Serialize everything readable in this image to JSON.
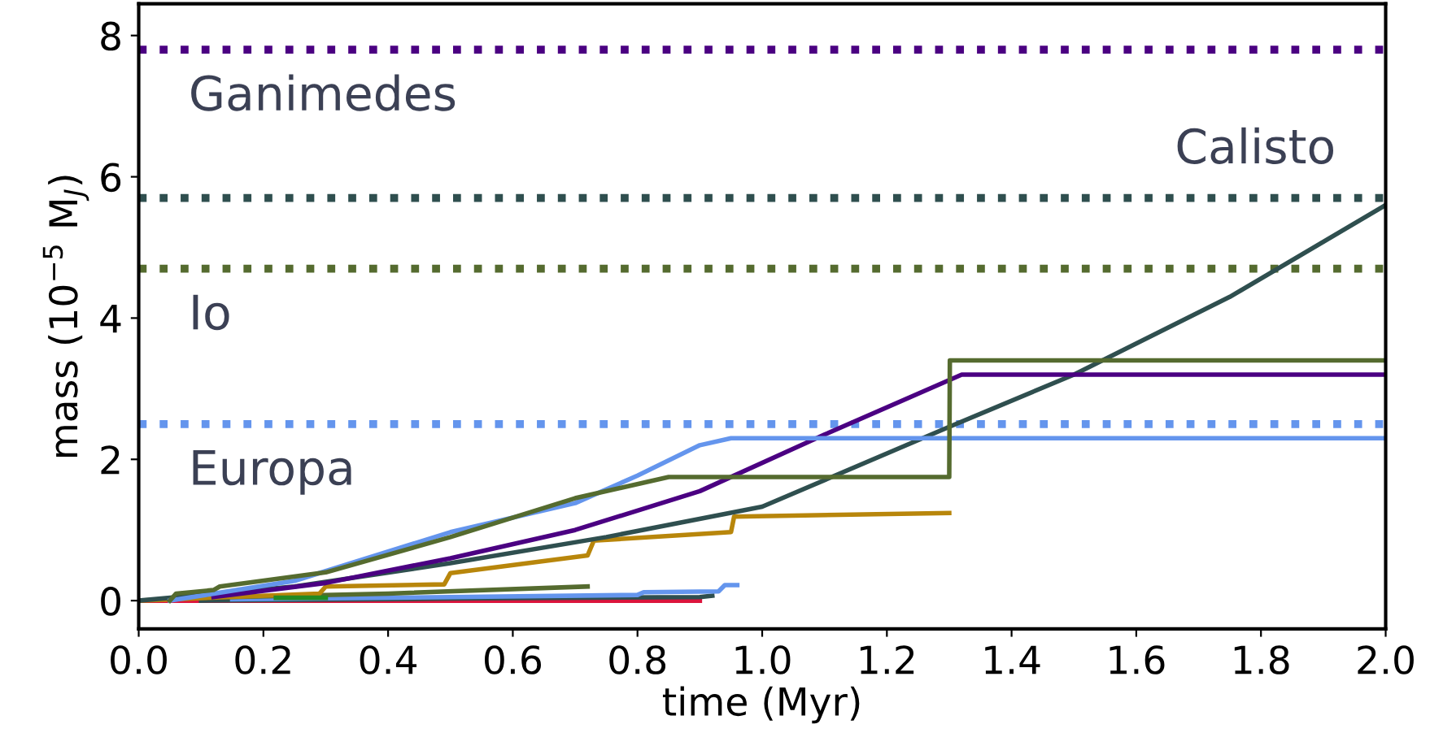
{
  "chart_data": {
    "type": "line",
    "xlabel": "time (Myr)",
    "ylabel": "mass (10$^{−5}$ M$_{J}$)",
    "xlim": [
      0.0,
      2.0
    ],
    "xticks": [
      {
        "value": 0,
        "label": "0.0"
      },
      {
        "value": 0.2,
        "label": "0.2"
      },
      {
        "value": 0.4,
        "label": "0.4"
      },
      {
        "value": 0.6,
        "label": "0.6"
      },
      {
        "value": 0.8,
        "label": "0.8"
      },
      {
        "value": 1.0,
        "label": "1.0"
      },
      {
        "value": 1.2,
        "label": "1.2"
      },
      {
        "value": 1.4,
        "label": "1.4"
      },
      {
        "value": 1.6,
        "label": "1.6"
      },
      {
        "value": 1.8,
        "label": "1.8"
      },
      {
        "value": 2.0,
        "label": "2.0"
      }
    ],
    "ylim": [
      -0.4,
      8.45
    ],
    "yticks": [
      0,
      2,
      4,
      6,
      8
    ],
    "grid": false,
    "legend": false,
    "marker": "none",
    "line_style": "solid",
    "ref_lines": [
      {
        "axis": "y",
        "value": 7.8,
        "label": "Ganimedes",
        "color": "#4b0082",
        "line_style": "dotted"
      },
      {
        "axis": "y",
        "value": 5.7,
        "label": "Calisto",
        "color": "#2f4f4f",
        "line_style": "dotted"
      },
      {
        "axis": "y",
        "value": 4.7,
        "label": "Io",
        "color": "#556b2f",
        "line_style": "dotted"
      },
      {
        "axis": "y",
        "value": 2.5,
        "label": "Europa",
        "color": "#6495ed",
        "line_style": "dotted"
      }
    ],
    "series": [
      {
        "color": "#dc143c",
        "x": [
          0.0,
          0.3,
          0.6,
          0.9
        ],
        "values": [
          0.0,
          0.0,
          0.0,
          0.0
        ]
      },
      {
        "color": "#2f4f4f",
        "x": [
          0.1,
          0.5,
          0.9,
          0.92
        ],
        "values": [
          0.0,
          0.03,
          0.05,
          0.07
        ]
      },
      {
        "color": "#6495ed",
        "x": [
          0.15,
          0.5,
          0.8,
          0.81,
          0.93,
          0.94,
          0.96
        ],
        "values": [
          0.02,
          0.05,
          0.08,
          0.12,
          0.13,
          0.22,
          0.22
        ]
      },
      {
        "color": "#556b2f",
        "x": [
          0.15,
          0.4,
          0.72
        ],
        "values": [
          0.05,
          0.1,
          0.2
        ]
      },
      {
        "color": "#b8860b",
        "x": [
          0.0,
          0.29,
          0.3,
          0.49,
          0.5,
          0.72,
          0.73,
          0.95,
          0.955,
          1.3
        ],
        "values": [
          0.0,
          0.1,
          0.2,
          0.23,
          0.39,
          0.64,
          0.85,
          0.97,
          1.19,
          1.24
        ]
      },
      {
        "color": "#2f4f4f",
        "x": [
          0.0,
          0.25,
          0.5,
          0.75,
          1.0,
          1.3,
          1.5,
          1.75,
          2.0
        ],
        "values": [
          0.0,
          0.2,
          0.53,
          0.9,
          1.33,
          2.46,
          3.2,
          4.3,
          5.6
        ]
      },
      {
        "color": "#4b0082",
        "x": [
          0.12,
          0.3,
          0.5,
          0.7,
          0.9,
          1.1,
          1.32,
          1.5,
          2.0
        ],
        "values": [
          0.05,
          0.25,
          0.6,
          1.0,
          1.55,
          2.35,
          3.2,
          3.2,
          3.2
        ]
      },
      {
        "color": "#6495ed",
        "x": [
          0.05,
          0.25,
          0.5,
          0.7,
          0.8,
          0.9,
          0.95,
          2.0
        ],
        "values": [
          0.0,
          0.28,
          0.97,
          1.38,
          1.77,
          2.2,
          2.3,
          2.3
        ]
      },
      {
        "color": "#556b2f",
        "x": [
          0.05,
          0.06,
          0.12,
          0.13,
          0.3,
          0.5,
          0.7,
          0.85,
          1.3,
          1.301,
          2.0
        ],
        "values": [
          0.0,
          0.1,
          0.15,
          0.2,
          0.4,
          0.9,
          1.45,
          1.75,
          1.75,
          3.4,
          3.4
        ]
      },
      {
        "color": "#228b22",
        "x": [
          0.22,
          0.27,
          0.3
        ],
        "values": [
          0.04,
          0.04,
          0.04
        ]
      }
    ]
  }
}
